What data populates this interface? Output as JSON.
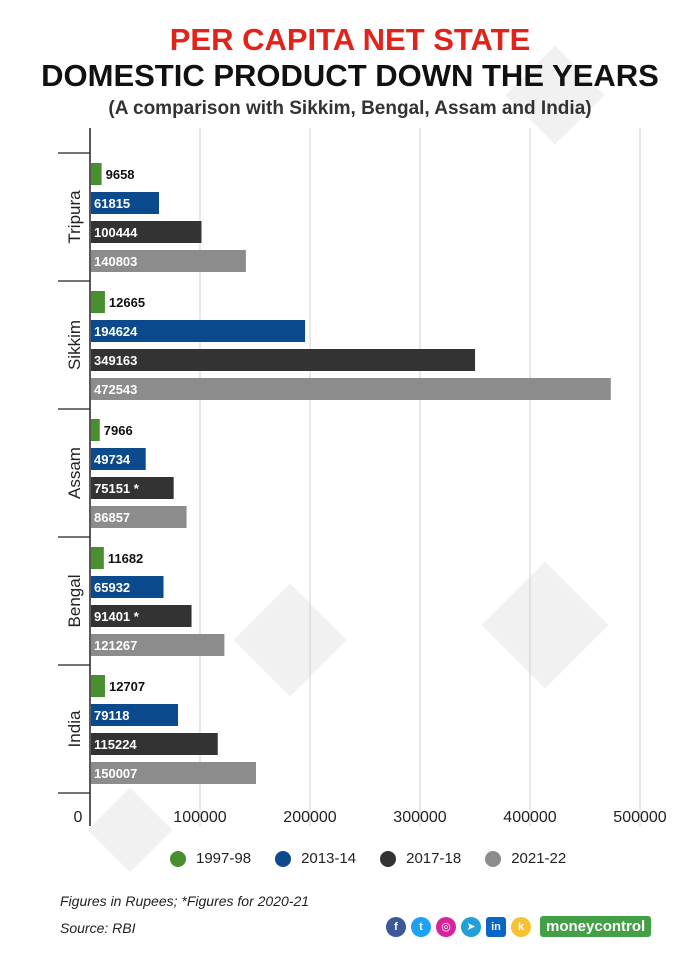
{
  "title_line1": "PER CAPITA NET STATE",
  "title_line2": "DOMESTIC PRODUCT DOWN THE YEARS",
  "subtitle": "(A comparison with Sikkim, Bengal, Assam and India)",
  "footnote1": "Figures in Rupees; *Figures for 2020-21",
  "footnote2": "Source: RBI",
  "brand": "moneycontrol",
  "social_icons": [
    "facebook-icon",
    "twitter-icon",
    "instagram-icon",
    "telegram-icon",
    "linkedin-icon",
    "koo-icon"
  ],
  "chart_data": {
    "type": "bar",
    "orientation": "horizontal",
    "categories": [
      "Tripura",
      "Sikkim",
      "Assam",
      "Bengal",
      "India"
    ],
    "series": [
      {
        "name": "1997-98",
        "color": "#4a8f2f",
        "values": [
          9658,
          12665,
          7966,
          11682,
          12707
        ]
      },
      {
        "name": "2013-14",
        "color": "#0b4a8c",
        "values": [
          61815,
          194624,
          49734,
          65932,
          79118
        ]
      },
      {
        "name": "2017-18",
        "color": "#333333",
        "values": [
          100444,
          349163,
          75151,
          91401,
          115224
        ]
      },
      {
        "name": "2021-22",
        "color": "#8c8c8c",
        "values": [
          140803,
          472543,
          86857,
          121267,
          150007
        ]
      }
    ],
    "labels": [
      [
        "9658",
        "12665",
        "7966",
        "11682",
        "12707"
      ],
      [
        "61815",
        "194624",
        "49734",
        "65932",
        "79118"
      ],
      [
        "100444",
        "349163",
        "75151 *",
        "91401 *",
        "115224"
      ],
      [
        "140803",
        "472543",
        "86857",
        "121267",
        "150007"
      ]
    ],
    "xticks": [
      "0",
      "100000",
      "200000",
      "300000",
      "400000",
      "500000"
    ],
    "xlim": [
      0,
      500000
    ],
    "grid": true,
    "legend_position": "bottom"
  }
}
